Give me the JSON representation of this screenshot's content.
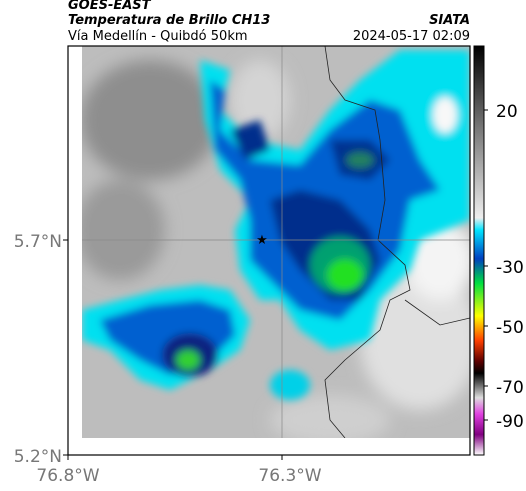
{
  "header": {
    "source": "GOES-EAST",
    "title": "Temperatura de Brillo CH13",
    "brand": "SIATA",
    "subtitle": "Vía Medellín - Quibdó 50km",
    "timestamp": "2024-05-17 02:09"
  },
  "map": {
    "lat_labels": [
      "5.7°N",
      "5.2°N"
    ],
    "lon_labels": [
      "76.8°W",
      "76.3°W"
    ]
  },
  "colorbar": {
    "tick_labels": [
      "20",
      "-30",
      "-50",
      "-70",
      "-90"
    ]
  }
}
